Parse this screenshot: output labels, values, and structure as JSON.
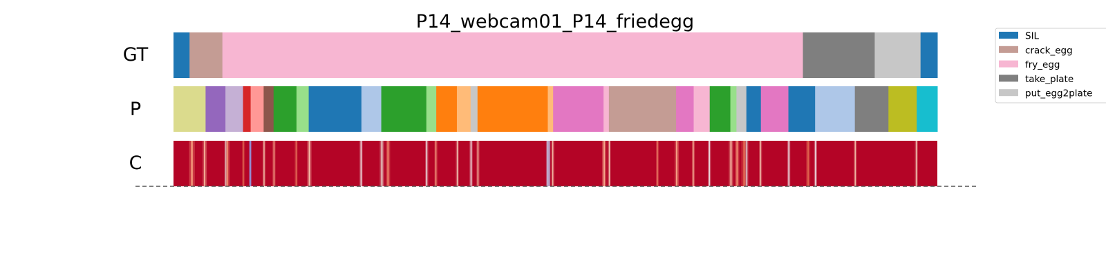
{
  "chart_data": {
    "type": "segmentation-timeline",
    "title": "P14_webcam01_P14_friedegg",
    "rows": [
      "GT",
      "P",
      "C"
    ],
    "x_range": [
      0,
      1000
    ],
    "legend": {
      "placement": "outside-right",
      "entries": [
        {
          "label": "SIL",
          "color": "#1f77b4"
        },
        {
          "label": "crack_egg",
          "color": "#c49c94"
        },
        {
          "label": "fry_egg",
          "color": "#f7b6d2"
        },
        {
          "label": "take_plate",
          "color": "#7f7f7f"
        },
        {
          "label": "put_egg2plate",
          "color": "#c7c7c7"
        }
      ]
    },
    "gt_segments": [
      {
        "start": 0,
        "end": 21,
        "color": "#1f77b4"
      },
      {
        "start": 21,
        "end": 64,
        "color": "#c49c94"
      },
      {
        "start": 64,
        "end": 824,
        "color": "#f7b6d2"
      },
      {
        "start": 824,
        "end": 918,
        "color": "#7f7f7f"
      },
      {
        "start": 918,
        "end": 978,
        "color": "#c7c7c7"
      },
      {
        "start": 978,
        "end": 1000,
        "color": "#1f77b4"
      }
    ],
    "p_segments": [
      {
        "start": 0,
        "end": 42,
        "color": "#dbdb8d"
      },
      {
        "start": 42,
        "end": 68,
        "color": "#9467bd"
      },
      {
        "start": 68,
        "end": 91,
        "color": "#c5b0d5"
      },
      {
        "start": 91,
        "end": 101,
        "color": "#d62728"
      },
      {
        "start": 101,
        "end": 118,
        "color": "#ff9896"
      },
      {
        "start": 118,
        "end": 131,
        "color": "#8c564b"
      },
      {
        "start": 131,
        "end": 161,
        "color": "#2ca02c"
      },
      {
        "start": 161,
        "end": 177,
        "color": "#98df8a"
      },
      {
        "start": 177,
        "end": 246,
        "color": "#1f77b4"
      },
      {
        "start": 246,
        "end": 272,
        "color": "#aec7e8"
      },
      {
        "start": 272,
        "end": 331,
        "color": "#2ca02c"
      },
      {
        "start": 331,
        "end": 344,
        "color": "#98df8a"
      },
      {
        "start": 344,
        "end": 371,
        "color": "#ff7f0e"
      },
      {
        "start": 371,
        "end": 389,
        "color": "#ffbb78"
      },
      {
        "start": 389,
        "end": 398,
        "color": "#c7c7c7"
      },
      {
        "start": 398,
        "end": 490,
        "color": "#ff7f0e"
      },
      {
        "start": 490,
        "end": 497,
        "color": "#ffbb78"
      },
      {
        "start": 497,
        "end": 563,
        "color": "#e377c2"
      },
      {
        "start": 563,
        "end": 570,
        "color": "#f7b6d2"
      },
      {
        "start": 570,
        "end": 658,
        "color": "#c49c94"
      },
      {
        "start": 658,
        "end": 681,
        "color": "#e377c2"
      },
      {
        "start": 681,
        "end": 702,
        "color": "#f7b6d2"
      },
      {
        "start": 702,
        "end": 729,
        "color": "#2ca02c"
      },
      {
        "start": 729,
        "end": 737,
        "color": "#98df8a"
      },
      {
        "start": 737,
        "end": 750,
        "color": "#c7c7c7"
      },
      {
        "start": 750,
        "end": 769,
        "color": "#1f77b4"
      },
      {
        "start": 769,
        "end": 805,
        "color": "#e377c2"
      },
      {
        "start": 805,
        "end": 840,
        "color": "#1f77b4"
      },
      {
        "start": 840,
        "end": 892,
        "color": "#aec7e8"
      },
      {
        "start": 892,
        "end": 936,
        "color": "#7f7f7f"
      },
      {
        "start": 936,
        "end": 973,
        "color": "#bcbd22"
      },
      {
        "start": 973,
        "end": 1000,
        "color": "#17becf"
      }
    ],
    "c_base_color": "#b40426",
    "c_streaks": [
      {
        "x": 23,
        "w": 4,
        "color": "#f4987a"
      },
      {
        "x": 40,
        "w": 3,
        "color": "#f7b89c"
      },
      {
        "x": 68,
        "w": 2,
        "color": "#dddcdc"
      },
      {
        "x": 70,
        "w": 3,
        "color": "#f08a6c"
      },
      {
        "x": 91,
        "w": 2,
        "color": "#e16751"
      },
      {
        "x": 100,
        "w": 2,
        "color": "#8db0fe"
      },
      {
        "x": 118,
        "w": 2,
        "color": "#f4c5ad"
      },
      {
        "x": 131,
        "w": 2,
        "color": "#f7a889"
      },
      {
        "x": 160,
        "w": 2,
        "color": "#e9785d"
      },
      {
        "x": 177,
        "w": 3,
        "color": "#f5c4ac"
      },
      {
        "x": 245,
        "w": 2,
        "color": "#f2f2f2"
      },
      {
        "x": 272,
        "w": 3,
        "color": "#e8d6cc"
      },
      {
        "x": 280,
        "w": 3,
        "color": "#f08b6e"
      },
      {
        "x": 331,
        "w": 2,
        "color": "#f0f0f0"
      },
      {
        "x": 343,
        "w": 2,
        "color": "#f5a081"
      },
      {
        "x": 371,
        "w": 2,
        "color": "#f2cbb7"
      },
      {
        "x": 389,
        "w": 2,
        "color": "#f2f2f2"
      },
      {
        "x": 398,
        "w": 2,
        "color": "#f6bda2"
      },
      {
        "x": 489,
        "w": 2,
        "color": "#c5d6f2"
      },
      {
        "x": 491,
        "w": 2,
        "color": "#b9d0f9"
      },
      {
        "x": 496,
        "w": 2,
        "color": "#f5c2aa"
      },
      {
        "x": 563,
        "w": 3,
        "color": "#f7ac8e"
      },
      {
        "x": 570,
        "w": 2,
        "color": "#f2cab5"
      },
      {
        "x": 633,
        "w": 2,
        "color": "#ee8468"
      },
      {
        "x": 658,
        "w": 3,
        "color": "#f7a688"
      },
      {
        "x": 680,
        "w": 2,
        "color": "#f7b396"
      },
      {
        "x": 701,
        "w": 2,
        "color": "#f2f2f2"
      },
      {
        "x": 729,
        "w": 3,
        "color": "#f6bfa6"
      },
      {
        "x": 737,
        "w": 3,
        "color": "#f39475"
      },
      {
        "x": 746,
        "w": 4,
        "color": "#e36c55"
      },
      {
        "x": 750,
        "w": 2,
        "color": "#dcdddd"
      },
      {
        "x": 768,
        "w": 2,
        "color": "#f4c6af"
      },
      {
        "x": 805,
        "w": 2,
        "color": "#f2f2f2"
      },
      {
        "x": 830,
        "w": 3,
        "color": "#e0654f"
      },
      {
        "x": 840,
        "w": 2,
        "color": "#f2f2f2"
      },
      {
        "x": 892,
        "w": 2,
        "color": "#f4c5ad"
      },
      {
        "x": 972,
        "w": 2,
        "color": "#f2cbb7"
      }
    ]
  }
}
